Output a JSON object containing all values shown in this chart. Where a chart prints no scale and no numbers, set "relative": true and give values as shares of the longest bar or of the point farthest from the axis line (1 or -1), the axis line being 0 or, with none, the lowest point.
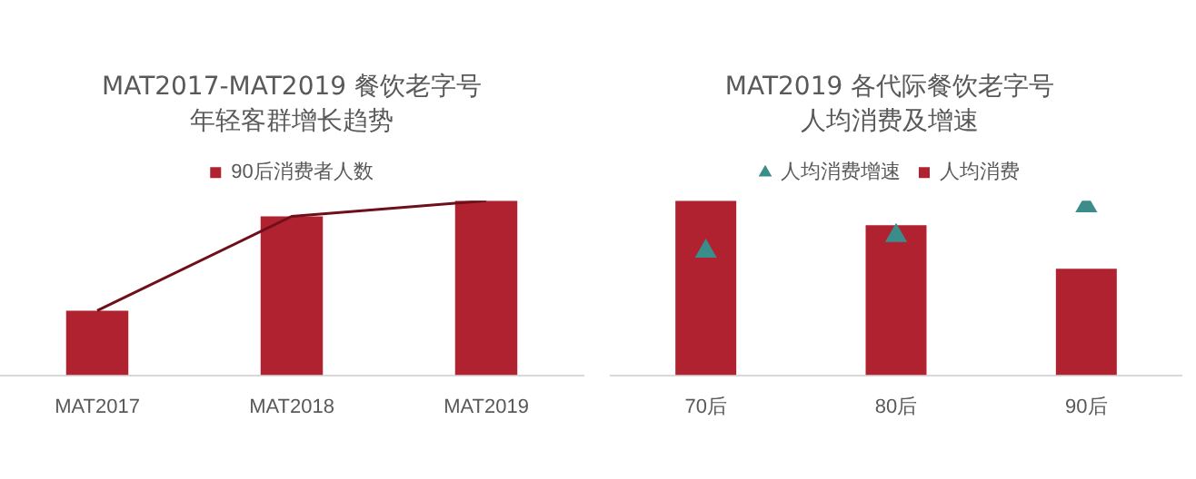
{
  "chart_data": [
    {
      "type": "bar",
      "title": "MAT2017-MAT2019 餐饮老字号",
      "subtitle": "年轻客群增长趋势",
      "categories": [
        "MAT2017",
        "MAT2018",
        "MAT2019"
      ],
      "relative": true,
      "legend": "top",
      "series": [
        {
          "name": "90后消费者人数",
          "color": "#b0222f",
          "values": [
            0.37,
            0.91,
            1
          ]
        },
        {
          "type": "line",
          "color": "#6e0f19",
          "marker": "none",
          "values": [
            0.37,
            0.91,
            1
          ]
        }
      ]
    },
    {
      "type": "bar",
      "title": "MAT2019 各代际餐饮老字号",
      "subtitle": "人均消费及增速",
      "categories": [
        "70后",
        "80后",
        "90后"
      ],
      "relative": true,
      "legend": "top",
      "series": [
        {
          "name": "人均消费",
          "color": "#b0222f",
          "values": [
            1,
            0.86,
            0.61
          ]
        },
        {
          "name": "人均消费增速",
          "type": "scatter",
          "color": "#3a8d8a",
          "marker": "triangle",
          "values": [
            0.71,
            0.8,
            0.97
          ]
        }
      ]
    }
  ]
}
